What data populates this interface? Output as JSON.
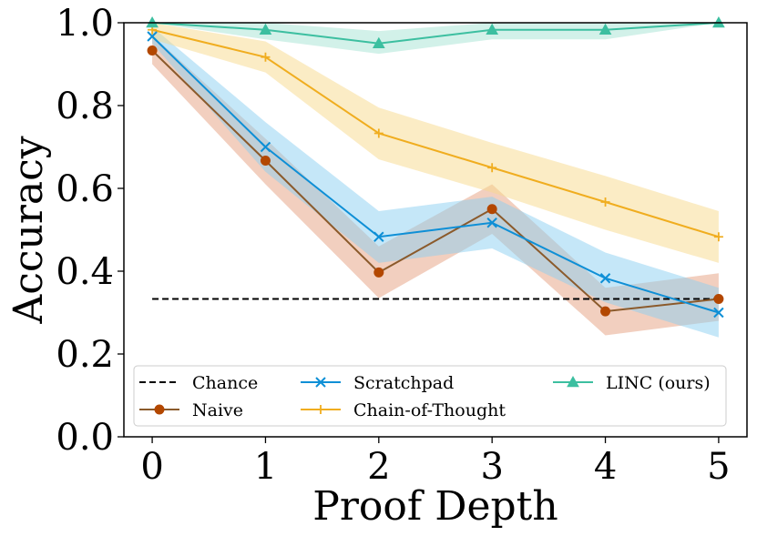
{
  "chart_data": {
    "type": "line",
    "title": "",
    "xlabel": "Proof Depth",
    "ylabel": "Accuracy",
    "x": [
      0,
      1,
      2,
      3,
      4,
      5
    ],
    "xlim": [
      -0.25,
      5.25
    ],
    "ylim": [
      0.0,
      1.0
    ],
    "xticks": [
      "0",
      "1",
      "2",
      "3",
      "4",
      "5"
    ],
    "yticks": [
      "0.0",
      "0.2",
      "0.4",
      "0.6",
      "0.8",
      "1.0"
    ],
    "grid": false,
    "legend_position": "bottom",
    "series": [
      {
        "name": "Chance",
        "style": "dashed",
        "marker": "none",
        "color": "#000000",
        "x": [
          0,
          5
        ],
        "values": [
          0.333,
          0.333
        ]
      },
      {
        "name": "Naive",
        "style": "solid",
        "marker": "circle",
        "color": "#b34700",
        "line_color": "#8b5a2b",
        "band_color": "#e5a07f",
        "values": [
          0.933,
          0.667,
          0.397,
          0.55,
          0.303,
          0.333
        ],
        "lower": [
          0.9,
          0.61,
          0.335,
          0.49,
          0.245,
          0.28
        ],
        "upper": [
          0.97,
          0.72,
          0.46,
          0.61,
          0.36,
          0.395
        ]
      },
      {
        "name": "Scratchpad",
        "style": "solid",
        "marker": "x",
        "color": "#0e8fd6",
        "band_color": "#8cd0f2",
        "values": [
          0.967,
          0.7,
          0.483,
          0.517,
          0.383,
          0.3
        ],
        "lower": [
          0.95,
          0.64,
          0.42,
          0.455,
          0.325,
          0.24
        ],
        "upper": [
          0.99,
          0.76,
          0.545,
          0.58,
          0.445,
          0.36
        ]
      },
      {
        "name": "Chain-of-Thought",
        "style": "solid",
        "marker": "plus",
        "color": "#f0ad1f",
        "band_color": "#f7d98c",
        "values": [
          0.983,
          0.917,
          0.733,
          0.65,
          0.567,
          0.483
        ],
        "lower": [
          0.96,
          0.88,
          0.67,
          0.59,
          0.5,
          0.42
        ],
        "upper": [
          1.0,
          0.955,
          0.795,
          0.71,
          0.63,
          0.545
        ]
      },
      {
        "name": "LINC (ours)",
        "style": "solid",
        "marker": "triangle",
        "color": "#3cbfa0",
        "band_color": "#a6e3d3",
        "values": [
          1.0,
          0.983,
          0.95,
          0.983,
          0.983,
          1.0
        ],
        "lower": [
          1.0,
          0.96,
          0.925,
          0.96,
          0.96,
          1.0
        ],
        "upper": [
          1.0,
          1.0,
          0.98,
          1.0,
          1.0,
          1.0
        ]
      }
    ]
  }
}
